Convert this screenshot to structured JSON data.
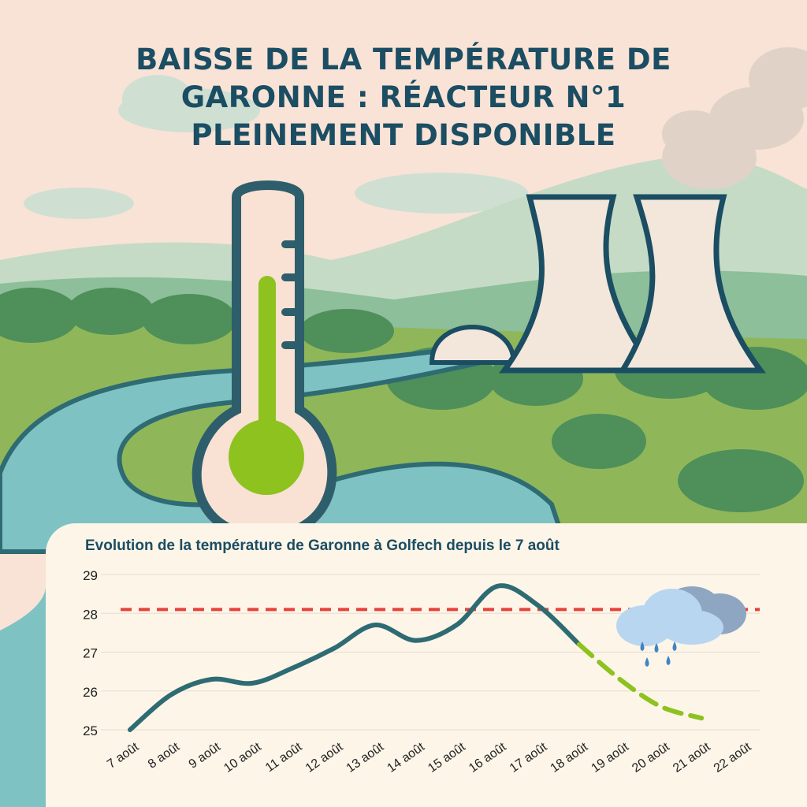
{
  "header": {
    "title_lines": [
      "BAISSE DE LA TEMPÉRATURE DE",
      "GARONNE : RÉACTEUR N°1",
      "PLEINEMENT DISPONIBLE"
    ]
  },
  "colors": {
    "title": "#1b4d63",
    "observed_line": "#2e6b73",
    "forecast_line": "#8dc21f",
    "threshold_line": "#e8403a",
    "grid": "#e4ddd0",
    "panel": "#fcf5e8"
  },
  "icons": [
    "thermometer-icon",
    "cooling-tower-icon",
    "river-icon",
    "rain-cloud-icon"
  ],
  "chart_data": {
    "type": "line",
    "title": "Evolution de la température de Garonne à Golfech depuis le 7 août",
    "xlabel": "",
    "ylabel": "",
    "categories": [
      "7 août",
      "8 août",
      "9 août",
      "10 août",
      "11 août",
      "12 août",
      "13 août",
      "14 août",
      "15 août",
      "16 août",
      "17 août",
      "18 août",
      "19 août",
      "20 août",
      "21 août",
      "22 août"
    ],
    "y_ticks": [
      25,
      26,
      27,
      28,
      29
    ],
    "ylim": [
      25,
      29
    ],
    "grid": true,
    "threshold": 28.1,
    "series": [
      {
        "style": "observed",
        "x": [
          0,
          1,
          2,
          3,
          4,
          5,
          6,
          7,
          8,
          9,
          10,
          11
        ],
        "values": [
          25.0,
          25.9,
          26.3,
          26.2,
          26.6,
          27.1,
          27.7,
          27.3,
          27.7,
          28.7,
          28.2,
          27.2
        ]
      },
      {
        "style": "forecast",
        "x": [
          11,
          12,
          13,
          14
        ],
        "values": [
          27.2,
          26.3,
          25.6,
          25.3
        ]
      }
    ]
  }
}
